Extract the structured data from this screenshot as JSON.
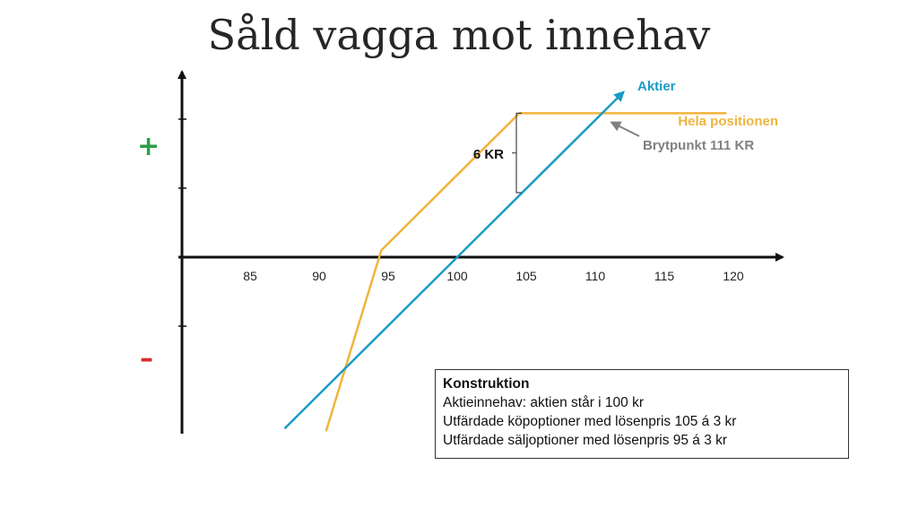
{
  "title": "Såld vagga mot innehav",
  "signs": {
    "plus": "+",
    "minus": "–"
  },
  "colors": {
    "stock": "#1a9bc7",
    "position": "#f0b43c",
    "axis": "#111111",
    "plus": "#2e9e4a",
    "minus": "#d62d2d",
    "annotation": "#808080"
  },
  "chart_data": {
    "type": "line",
    "xticks": [
      85,
      90,
      95,
      100,
      105,
      110,
      115,
      120
    ],
    "series": [
      {
        "name": "Aktier",
        "x": [
          87.5,
          112
        ],
        "y": [
          -12.5,
          12
        ]
      },
      {
        "name": "Hela positionen",
        "x": [
          90.5,
          94.5,
          104.5,
          119.5
        ],
        "y": [
          -12.7,
          0.5,
          10.5,
          10.5
        ]
      }
    ],
    "annotations": {
      "gap_label": "6 KR",
      "breakeven_label": "Brytpunkt 111 KR"
    }
  },
  "info": {
    "heading": "Konstruktion",
    "lines": [
      "Aktieinnehav: aktien står i 100 kr",
      "Utfärdade köpoptioner med lösenpris 105 á 3 kr",
      "Utfärdade säljoptioner med lösenpris 95 á 3 kr"
    ]
  }
}
